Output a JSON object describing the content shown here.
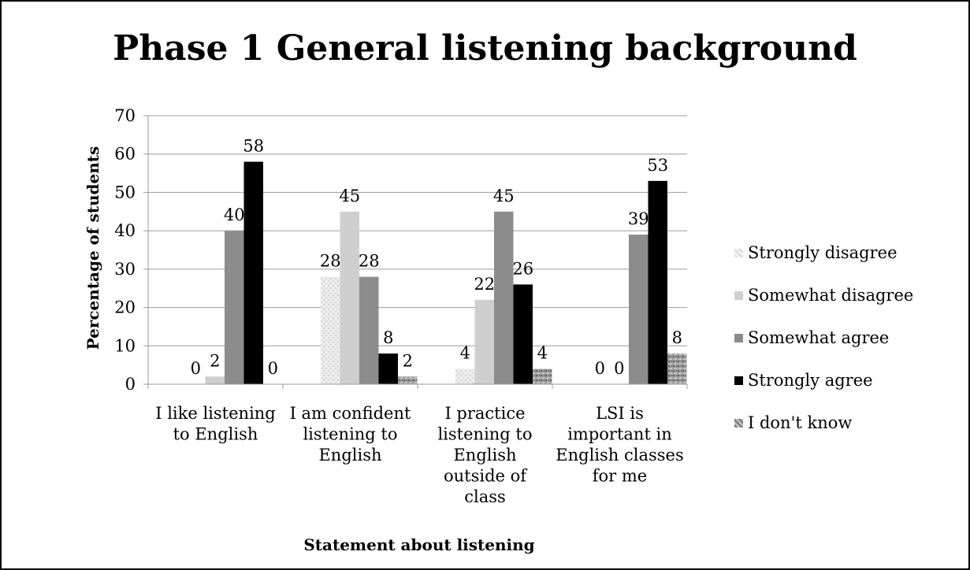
{
  "chart_data": {
    "type": "bar",
    "title": "Phase 1 General listening background",
    "xlabel": "Statement about listening",
    "ylabel": "Percentage of students",
    "ylim": [
      0,
      70
    ],
    "yticks": [
      0,
      10,
      20,
      30,
      40,
      50,
      60,
      70
    ],
    "grid": true,
    "legend_position": "right",
    "categories": [
      [
        "I like listening",
        "to English"
      ],
      [
        "I am confident",
        "listening to",
        "English"
      ],
      [
        "I practice",
        "listening to",
        "English",
        "outside of",
        "class"
      ],
      [
        "LSI is",
        "important in",
        "English classes",
        "for me"
      ]
    ],
    "series": [
      {
        "name": "Strongly disagree",
        "values": [
          0,
          28,
          4,
          0
        ],
        "color": "#e6e6e6",
        "pattern": "speckle-light"
      },
      {
        "name": "Somewhat disagree",
        "values": [
          2,
          45,
          22,
          0
        ],
        "color": "#cfcfcf"
      },
      {
        "name": "Somewhat agree",
        "values": [
          40,
          28,
          45,
          39
        ],
        "color": "#8c8c8c"
      },
      {
        "name": "Strongly agree",
        "values": [
          58,
          8,
          26,
          53
        ],
        "color": "#000000"
      },
      {
        "name": "I don't know",
        "values": [
          0,
          2,
          4,
          8
        ],
        "color": "#9a9a9a",
        "pattern": "speckle-dark"
      }
    ],
    "data_labels": [
      [
        "0",
        "2",
        "40",
        "58",
        "0"
      ],
      [
        "28",
        "45",
        "28",
        "8",
        "2"
      ],
      [
        "4",
        "22",
        "45",
        "26",
        "4"
      ],
      [
        "0",
        "0",
        "39",
        "53",
        "8"
      ]
    ]
  }
}
